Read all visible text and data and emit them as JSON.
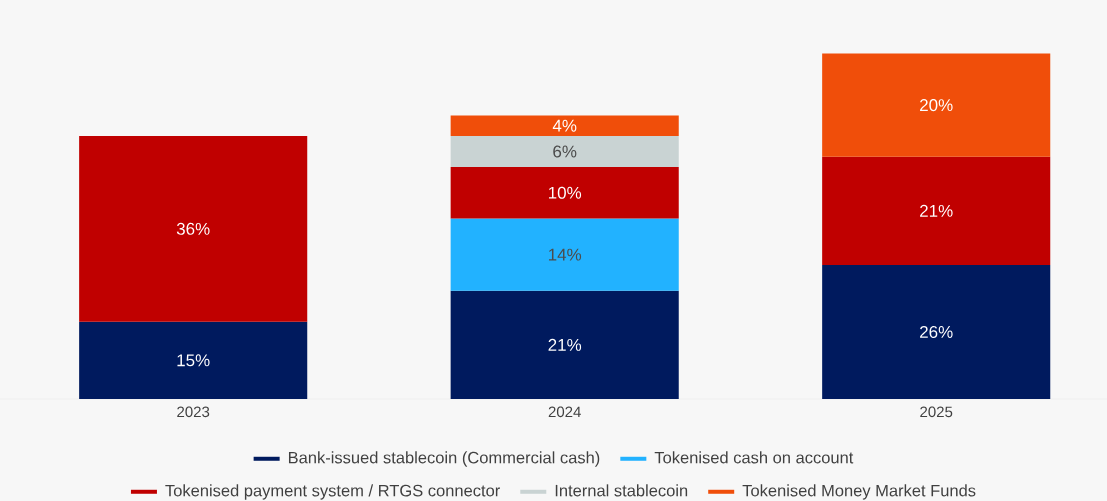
{
  "chart_data": {
    "type": "bar",
    "stacked": true,
    "categories": [
      "2023",
      "2024",
      "2025"
    ],
    "legend": "bottom",
    "series": [
      {
        "name": "Bank-issued stablecoin (Commercial cash)",
        "color": "#001a5e",
        "values": [
          15,
          21,
          26
        ],
        "value_labels": [
          "15%",
          "21%",
          "26%"
        ]
      },
      {
        "name": "Tokenised cash on account",
        "color": "#22b2ff",
        "values": [
          null,
          14,
          null
        ],
        "value_labels": [
          null,
          "14%",
          null
        ]
      },
      {
        "name": "Tokenised payment system / RTGS connector",
        "color": "#c00000",
        "values": [
          36,
          10,
          21
        ],
        "value_labels": [
          "36%",
          "10%",
          "21%"
        ]
      },
      {
        "name": "Internal stablecoin",
        "color": "#c9d3d3",
        "values": [
          null,
          6,
          null
        ],
        "value_labels": [
          null,
          "6%",
          null
        ]
      },
      {
        "name": "Tokenised Money Market Funds",
        "color": "#f04e0a",
        "values": [
          null,
          4,
          20
        ],
        "value_labels": [
          null,
          "4%",
          "20%"
        ]
      }
    ]
  }
}
